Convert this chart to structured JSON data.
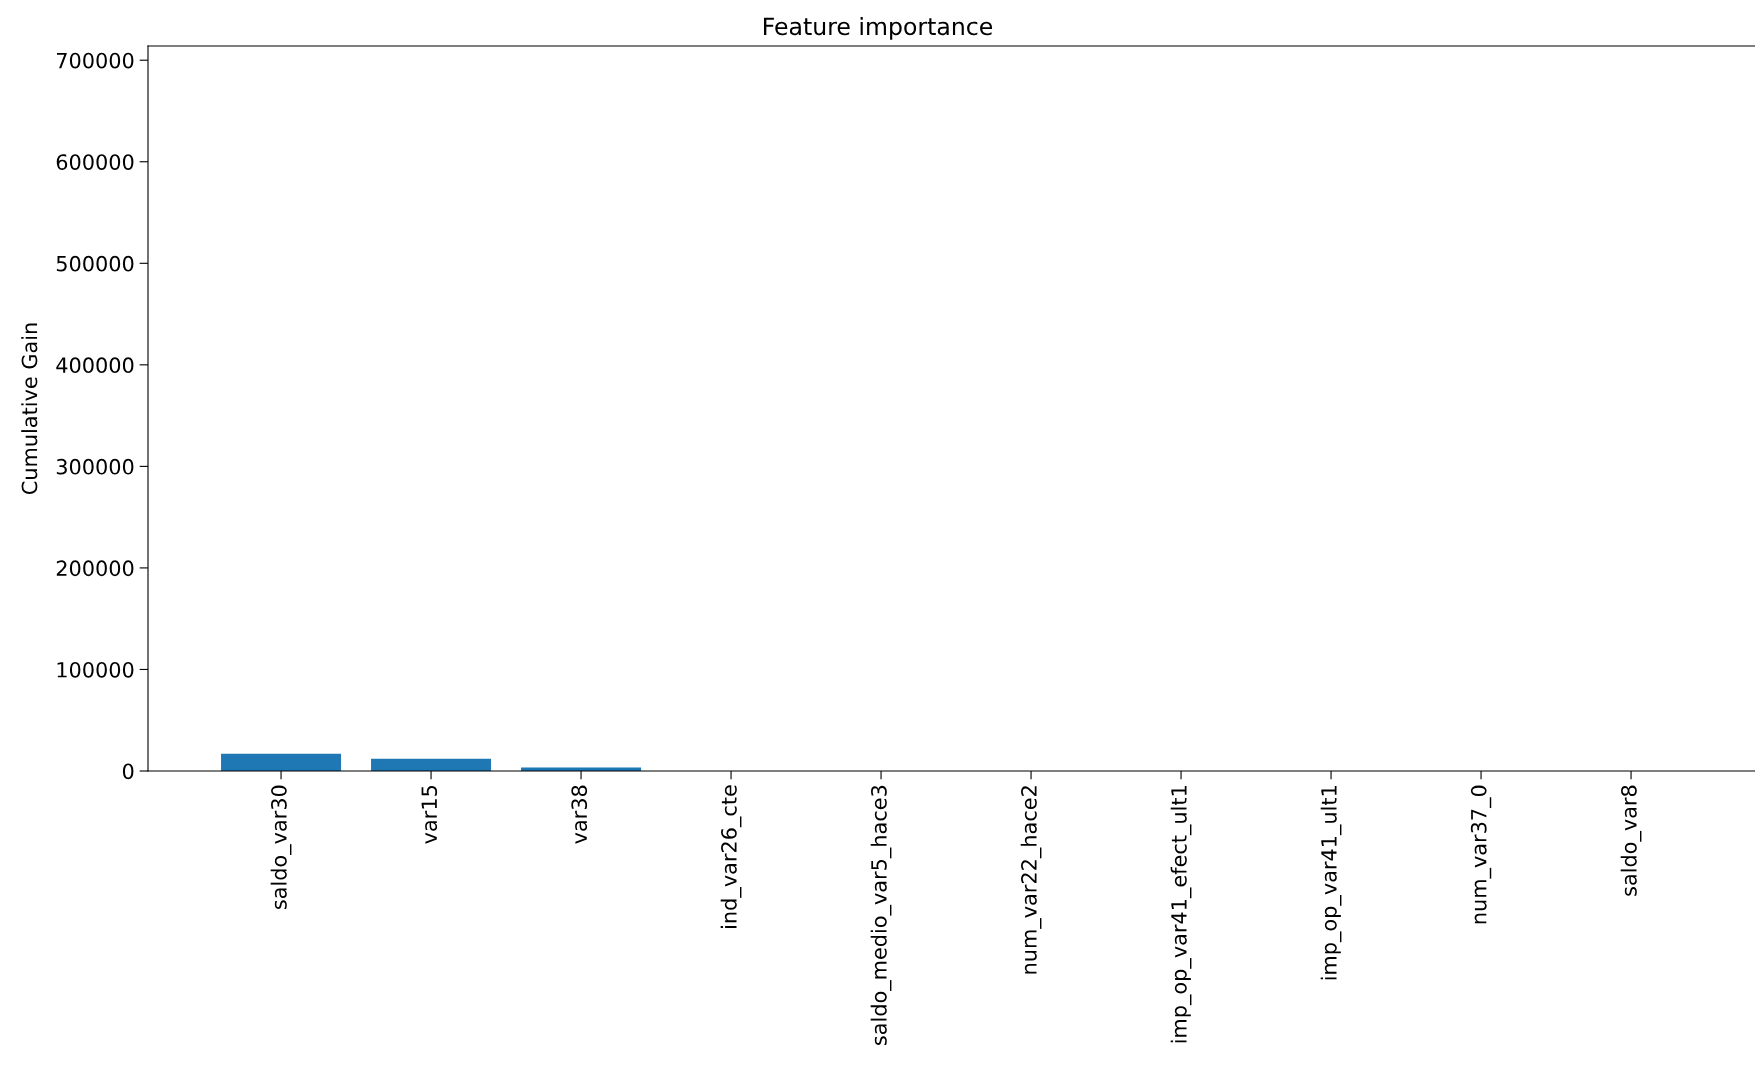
{
  "chart_data": {
    "type": "bar",
    "title": "Feature importance",
    "ylabel": "Cumulative Gain",
    "categories": [
      "saldo_var30",
      "var15",
      "var38",
      "ind_var26_cte",
      "saldo_medio_var5_hace3",
      "num_var22_hace2",
      "imp_op_var41_efect_ult1",
      "imp_op_var41_ult1",
      "num_var37_0",
      "saldo_var8"
    ],
    "values": [
      17000,
      12000,
      3500,
      0,
      0,
      0,
      0,
      0,
      0,
      0
    ],
    "color": "#1f77b4",
    "ylim": [
      0,
      714000
    ],
    "yticks": [
      0,
      100000,
      200000,
      300000,
      400000,
      500000,
      600000,
      700000
    ],
    "grid": false
  }
}
